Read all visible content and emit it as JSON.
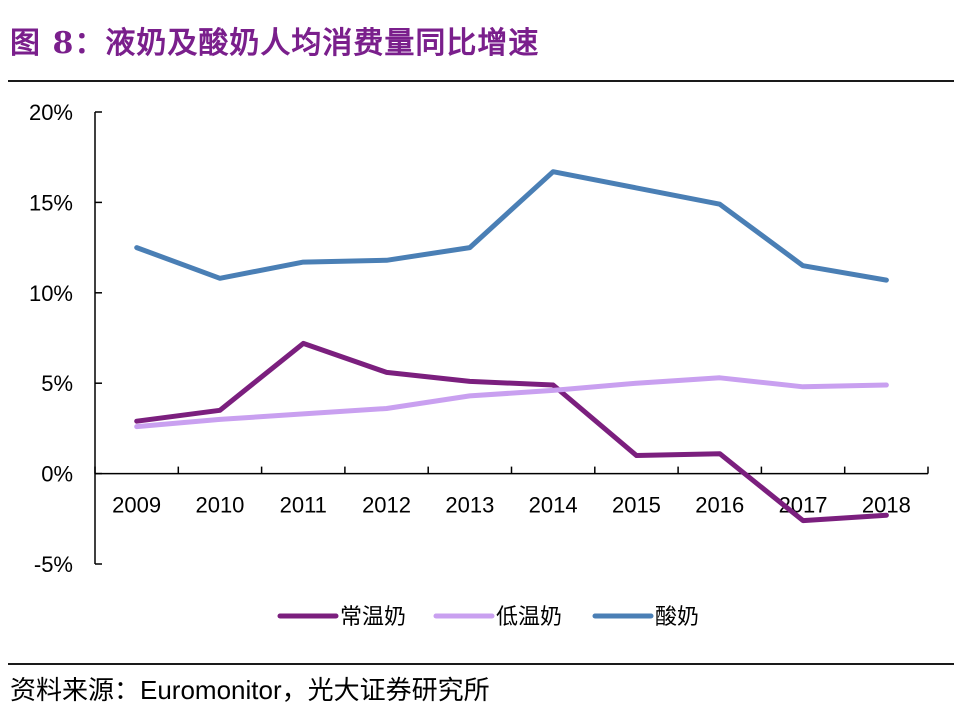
{
  "figure_title": "图 8：液奶及酸奶人均消费量同比增速",
  "source_note": "资料来源：Euromonitor，光大证券研究所",
  "colors": {
    "title": "#7a1f8c",
    "axis": "#000000"
  },
  "chart_data": {
    "type": "line",
    "title": "",
    "xlabel": "",
    "ylabel": "",
    "x": [
      "2009",
      "2010",
      "2011",
      "2012",
      "2013",
      "2014",
      "2015",
      "2016",
      "2017",
      "2018"
    ],
    "ylim": [
      -5,
      20
    ],
    "yticks": [
      -5,
      0,
      5,
      10,
      15,
      20
    ],
    "ytick_labels": [
      "-5%",
      "0%",
      "5%",
      "10%",
      "15%",
      "20%"
    ],
    "grid": false,
    "legend_position": "bottom",
    "series": [
      {
        "name": "常温奶",
        "color": "#7b1f7e",
        "values": [
          2.9,
          3.5,
          7.2,
          5.6,
          5.1,
          4.9,
          1.0,
          1.1,
          -2.6,
          -2.3
        ]
      },
      {
        "name": "低温奶",
        "color": "#c9a0f0",
        "values": [
          2.6,
          3.0,
          3.3,
          3.6,
          4.3,
          4.6,
          5.0,
          5.3,
          4.8,
          4.9
        ]
      },
      {
        "name": "酸奶",
        "color": "#4a7fb5",
        "values": [
          12.5,
          10.8,
          11.7,
          11.8,
          12.5,
          16.7,
          15.8,
          14.9,
          11.5,
          10.7
        ]
      }
    ]
  }
}
